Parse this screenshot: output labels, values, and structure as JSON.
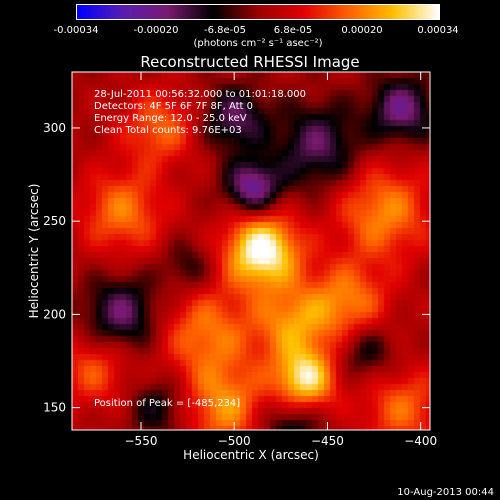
{
  "colorbar": {
    "tick_labels": [
      "-0.00034",
      "-0.00020",
      "-6.8e-05",
      "6.8e-05",
      "0.00020",
      "0.00034"
    ],
    "tick_values": [
      -0.00034,
      -0.0002,
      -6.8e-05,
      6.8e-05,
      0.0002,
      0.00034
    ],
    "range": [
      -0.00034,
      0.00034
    ],
    "units": "(photons cm⁻² s⁻¹ asec⁻²)",
    "colors": [
      "#0000ff",
      "#5a1eb4",
      "#7a1a70",
      "#000000",
      "#9a0000",
      "#e00000",
      "#ff6000",
      "#ffc000",
      "#ffffff"
    ]
  },
  "chart_data": {
    "type": "heatmap",
    "title": "Reconstructed RHESSI Image",
    "xlabel": "Heliocentric X (arcsec)",
    "ylabel": "Heliocentric Y (arcsec)",
    "xlim": [
      -587,
      -395
    ],
    "ylim": [
      138,
      330
    ],
    "x_ticks": [
      -550,
      -500,
      -450,
      -400
    ],
    "x_tick_labels": [
      "−550",
      "−500",
      "−450",
      "−400"
    ],
    "y_ticks": [
      150,
      200,
      250,
      300
    ],
    "y_tick_labels": [
      "150",
      "200",
      "250",
      "300"
    ],
    "peak": {
      "x": -485,
      "y": 234
    },
    "sources": [
      {
        "x": -485,
        "y": 234,
        "amp": 1.0,
        "w": 14
      },
      {
        "x": -462,
        "y": 165,
        "amp": 0.85,
        "w": 12
      },
      {
        "x": -420,
        "y": 255,
        "amp": 0.55,
        "w": 18
      },
      {
        "x": -440,
        "y": 205,
        "amp": 0.55,
        "w": 16
      },
      {
        "x": -515,
        "y": 190,
        "amp": 0.5,
        "w": 18
      },
      {
        "x": -560,
        "y": 255,
        "amp": 0.5,
        "w": 16
      },
      {
        "x": -540,
        "y": 300,
        "amp": 0.45,
        "w": 14
      },
      {
        "x": -505,
        "y": 150,
        "amp": 0.55,
        "w": 16
      },
      {
        "x": -575,
        "y": 170,
        "amp": 0.4,
        "w": 14
      },
      {
        "x": -410,
        "y": 150,
        "amp": 0.45,
        "w": 16
      },
      {
        "x": -470,
        "y": 195,
        "amp": 0.5,
        "w": 14
      },
      {
        "x": -500,
        "y": 305,
        "amp": -0.5,
        "w": 12
      },
      {
        "x": -490,
        "y": 268,
        "amp": -0.7,
        "w": 10
      },
      {
        "x": -410,
        "y": 310,
        "amp": -0.6,
        "w": 12
      },
      {
        "x": -455,
        "y": 290,
        "amp": -0.5,
        "w": 16
      },
      {
        "x": -560,
        "y": 200,
        "amp": -0.55,
        "w": 14
      },
      {
        "x": -430,
        "y": 180,
        "amp": -0.4,
        "w": 12
      },
      {
        "x": -540,
        "y": 150,
        "amp": -0.35,
        "w": 12
      },
      {
        "x": -470,
        "y": 140,
        "amp": -0.4,
        "w": 12
      },
      {
        "x": -525,
        "y": 225,
        "amp": -0.3,
        "w": 10
      }
    ]
  },
  "info": {
    "line1": "28-Jul-2011 00:56:32.000 to 01:01:18.000",
    "line2": "Detectors: 4F 5F 6F 7F 8F, Att 0",
    "line3": "Energy Range: 12.0 - 25.0 keV",
    "line4": "Clean     Total counts: 9.76E+03"
  },
  "peak_label": "Position of Peak = [-485,234]",
  "footer_date": "10-Aug-2013 00:44"
}
